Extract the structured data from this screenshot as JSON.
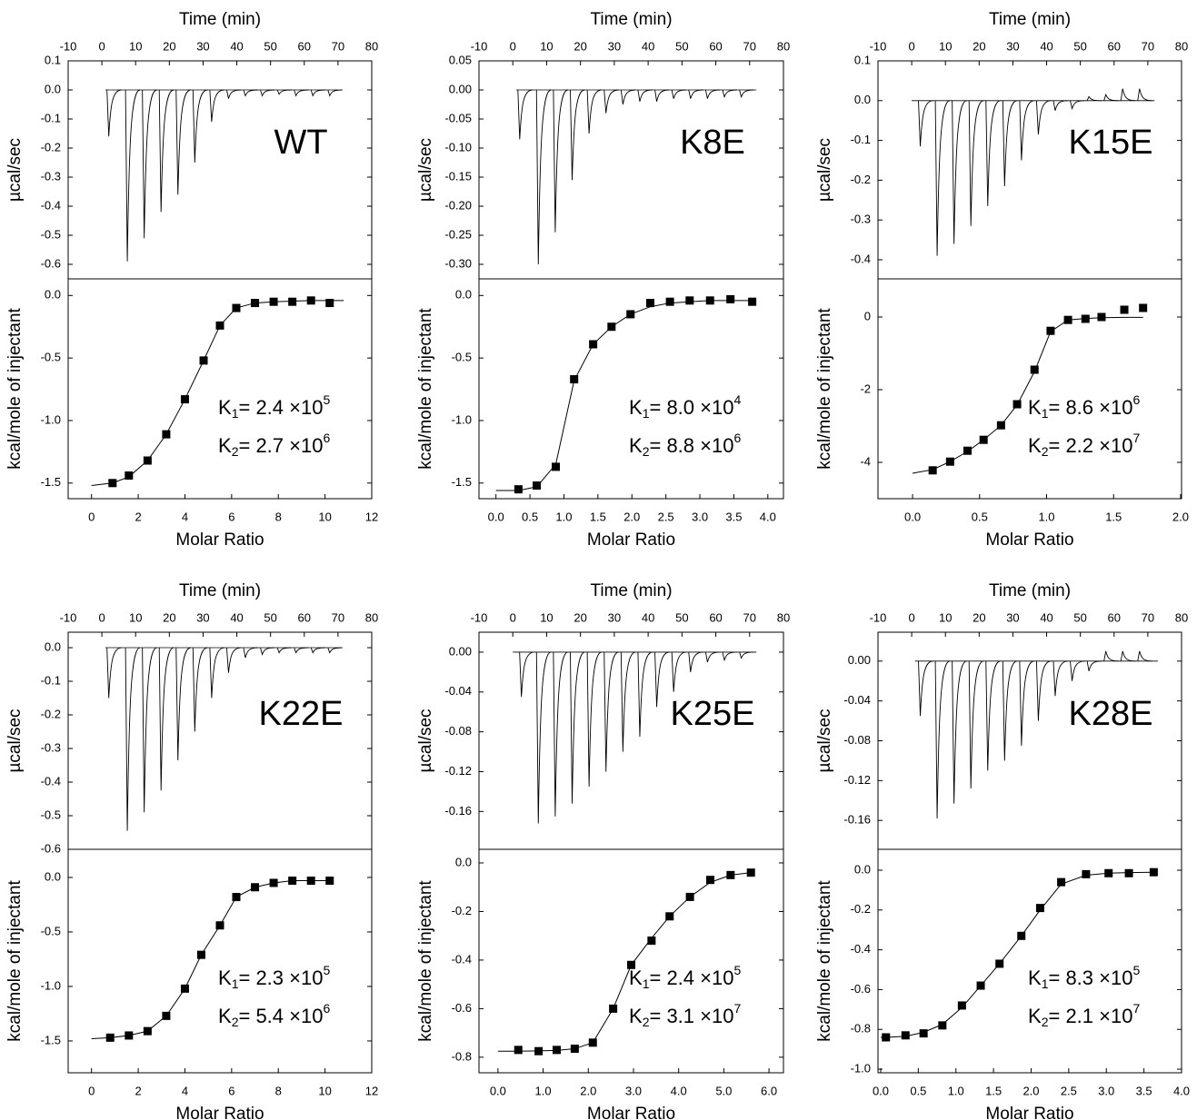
{
  "chart_data": [
    {
      "type": "thermogram",
      "label": "WT",
      "xlabel": "Time (min)",
      "ylabel": "µcal/sec",
      "x": [
        1.5,
        7,
        12,
        17,
        22,
        27,
        32,
        37,
        42,
        47,
        52,
        57,
        62,
        67
      ],
      "values": [
        -0.16,
        -0.59,
        -0.51,
        -0.42,
        -0.36,
        -0.25,
        -0.11,
        -0.03,
        -0.02,
        -0.02,
        -0.015,
        -0.02,
        -0.02,
        -0.02
      ],
      "baseline_x": [
        1,
        70
      ],
      "xlim": [
        -10,
        80
      ],
      "xticks": [
        -10,
        0,
        10,
        20,
        30,
        40,
        50,
        60,
        70,
        80
      ],
      "ylim": [
        -0.65,
        0.1
      ],
      "yticks": [
        0.1,
        {
          "value": 0,
          "label": "0.0"
        },
        -0.1,
        -0.2,
        -0.3,
        -0.4,
        -0.5,
        -0.6
      ]
    },
    {
      "type": "scatter",
      "xlabel": "Molar Ratio",
      "ylabel": "kcal/mole of injectant",
      "x": [
        0.9,
        1.6,
        2.4,
        3.2,
        4.0,
        4.8,
        5.5,
        6.2,
        7.0,
        7.8,
        8.6,
        9.4,
        10.2
      ],
      "values": [
        -1.5,
        -1.44,
        -1.32,
        -1.11,
        -0.83,
        -0.52,
        -0.24,
        -0.1,
        -0.06,
        -0.05,
        -0.05,
        -0.04,
        -0.06
      ],
      "fit": {
        "x": [
          0,
          0.9,
          1.6,
          2.4,
          3.2,
          4.0,
          4.8,
          5.5,
          6.2,
          7.0,
          7.8,
          8.6,
          9.4,
          10.2,
          10.8
        ],
        "values": [
          -1.52,
          -1.5,
          -1.45,
          -1.32,
          -1.11,
          -0.83,
          -0.52,
          -0.24,
          -0.1,
          -0.06,
          -0.05,
          -0.045,
          -0.04,
          -0.04,
          -0.04
        ]
      },
      "xlim": [
        -1,
        12
      ],
      "xticks": [
        0,
        2,
        4,
        6,
        8,
        10,
        12
      ],
      "ylim": [
        -1.625,
        0.133
      ],
      "yticks": [
        {
          "value": 0,
          "label": "0.0"
        },
        -0.5,
        {
          "value": -1,
          "label": "-1.0"
        },
        -1.5
      ],
      "annotations": [
        {
          "symbol": "K",
          "sub": "1",
          "text": "= 2.4 ×10",
          "sup": "5"
        },
        {
          "symbol": "K",
          "sub": "2",
          "text": "= 2.7 ×10",
          "sup": "6"
        }
      ]
    },
    {
      "type": "thermogram",
      "label": "K8E",
      "xlabel": "Time (min)",
      "ylabel": "µcal/sec",
      "x": [
        1.5,
        7,
        12,
        17,
        22,
        27,
        32,
        37,
        42,
        47,
        52,
        57,
        62,
        67
      ],
      "values": [
        -0.085,
        -0.3,
        -0.245,
        -0.155,
        -0.075,
        -0.04,
        -0.025,
        -0.02,
        -0.02,
        -0.015,
        -0.015,
        -0.015,
        -0.012,
        -0.012
      ],
      "baseline_x": [
        1,
        72
      ],
      "xlim": [
        -10,
        80
      ],
      "xticks": [
        -10,
        0,
        10,
        20,
        30,
        40,
        50,
        60,
        70,
        80
      ],
      "ylim": [
        -0.325,
        0.05
      ],
      "yticks": [
        0.05,
        {
          "value": 0,
          "label": "0.00"
        },
        -0.05,
        {
          "value": -0.1,
          "label": "-0.10"
        },
        -0.15,
        {
          "value": -0.2,
          "label": "-0.20"
        },
        -0.25,
        {
          "value": -0.3,
          "label": "-0.30"
        }
      ]
    },
    {
      "type": "scatter",
      "xlabel": "Molar Ratio",
      "ylabel": "kcal/mole of injectant",
      "x": [
        0.33,
        0.6,
        0.88,
        1.15,
        1.43,
        1.7,
        1.98,
        2.27,
        2.56,
        2.85,
        3.15,
        3.45,
        3.77
      ],
      "values": [
        -1.55,
        -1.52,
        -1.37,
        -0.67,
        -0.39,
        -0.25,
        -0.15,
        -0.06,
        -0.05,
        -0.04,
        -0.04,
        -0.03,
        -0.05
      ],
      "fit": {
        "x": [
          0,
          0.33,
          0.6,
          0.88,
          1.15,
          1.43,
          1.7,
          1.98,
          2.27,
          2.56,
          2.85,
          3.15,
          3.45,
          3.77
        ],
        "values": [
          -1.56,
          -1.56,
          -1.53,
          -1.35,
          -0.68,
          -0.39,
          -0.25,
          -0.15,
          -0.09,
          -0.06,
          -0.05,
          -0.04,
          -0.04,
          -0.04
        ]
      },
      "xlim": [
        -0.25,
        4.23
      ],
      "xticks": [
        {
          "value": 0,
          "label": "0.0"
        },
        0.5,
        {
          "value": 1,
          "label": "1.0"
        },
        1.5,
        {
          "value": 2,
          "label": "2.0"
        },
        2.5,
        {
          "value": 3,
          "label": "3.0"
        },
        3.5,
        {
          "value": 4,
          "label": "4.0"
        }
      ],
      "ylim": [
        -1.625,
        0.133
      ],
      "yticks": [
        {
          "value": 0,
          "label": "0.0"
        },
        -0.5,
        {
          "value": -1,
          "label": "-1.0"
        },
        -1.5
      ],
      "annotations": [
        {
          "symbol": "K",
          "sub": "1",
          "text": "= 8.0 ×10",
          "sup": "4"
        },
        {
          "symbol": "K",
          "sub": "2",
          "text": "= 8.8 ×10",
          "sup": "6"
        }
      ]
    },
    {
      "type": "thermogram",
      "label": "K15E",
      "xlabel": "Time (min)",
      "ylabel": "µcal/sec",
      "x": [
        2,
        7,
        12,
        17,
        22,
        27,
        32,
        37,
        42,
        47,
        52,
        57,
        62,
        67
      ],
      "values": [
        -0.115,
        -0.39,
        -0.36,
        -0.315,
        -0.265,
        -0.215,
        -0.15,
        -0.085,
        -0.025,
        -0.02,
        0.01,
        0.015,
        0.03,
        0.03
      ],
      "baseline_x": [
        0,
        72
      ],
      "xlim": [
        -10,
        80
      ],
      "xticks": [
        -10,
        0,
        10,
        20,
        30,
        40,
        50,
        60,
        70,
        80
      ],
      "ylim": [
        -0.448,
        0.1
      ],
      "yticks": [
        0.1,
        {
          "value": 0,
          "label": "0.0"
        },
        -0.1,
        -0.2,
        -0.3,
        -0.4
      ]
    },
    {
      "type": "scatter",
      "xlabel": "Molar Ratio",
      "ylabel": "kcal/mole of injectant",
      "x": [
        0.15,
        0.28,
        0.41,
        0.53,
        0.66,
        0.78,
        0.91,
        1.03,
        1.16,
        1.29,
        1.41,
        1.58,
        1.72
      ],
      "values": [
        -4.22,
        -3.98,
        -3.68,
        -3.38,
        -2.98,
        -2.4,
        -1.45,
        -0.38,
        -0.08,
        -0.05,
        0.0,
        0.2,
        0.25
      ],
      "fit": {
        "x": [
          0,
          0.15,
          0.28,
          0.41,
          0.53,
          0.66,
          0.78,
          0.91,
          1.03,
          1.16,
          1.29,
          1.41,
          1.58,
          1.72
        ],
        "values": [
          -4.3,
          -4.2,
          -3.98,
          -3.7,
          -3.38,
          -2.98,
          -2.42,
          -1.5,
          -0.4,
          -0.08,
          -0.04,
          -0.02,
          -0.01,
          -0.01
        ]
      },
      "xlim": [
        -0.258,
        2.007
      ],
      "xticks": [
        {
          "value": 0,
          "label": "0.0"
        },
        0.5,
        {
          "value": 1,
          "label": "1.0"
        },
        1.5,
        {
          "value": 2,
          "label": "2.0"
        }
      ],
      "ylim": [
        -5,
        1.05
      ],
      "yticks": [
        0,
        -2,
        -4
      ],
      "annotations": [
        {
          "symbol": "K",
          "sub": "1",
          "text": "= 8.6 ×10",
          "sup": "6"
        },
        {
          "symbol": "K",
          "sub": "2",
          "text": "= 2.2 ×10",
          "sup": "7"
        }
      ]
    },
    {
      "type": "thermogram",
      "label": "K22E",
      "xlabel": "Time (min)",
      "ylabel": "µcal/sec",
      "x": [
        1.5,
        7,
        12,
        17,
        22,
        27,
        32,
        37,
        42,
        47,
        52,
        57,
        62,
        67
      ],
      "values": [
        -0.15,
        -0.545,
        -0.49,
        -0.425,
        -0.335,
        -0.25,
        -0.15,
        -0.075,
        -0.03,
        -0.02,
        -0.015,
        -0.015,
        -0.015,
        -0.015
      ],
      "baseline_x": [
        1,
        71
      ],
      "xlim": [
        -10,
        80
      ],
      "xticks": [
        -10,
        0,
        10,
        20,
        30,
        40,
        50,
        60,
        70,
        80
      ],
      "ylim": [
        -0.6,
        0.046
      ],
      "yticks": [
        {
          "value": 0,
          "label": "0.0"
        },
        -0.1,
        -0.2,
        -0.3,
        -0.4,
        -0.5,
        -0.6
      ]
    },
    {
      "type": "scatter",
      "xlabel": "Molar Ratio",
      "ylabel": "kcal/mole of injectant",
      "x": [
        0.8,
        1.6,
        2.4,
        3.2,
        4.0,
        4.7,
        5.5,
        6.2,
        7.0,
        7.8,
        8.6,
        9.4,
        10.2
      ],
      "values": [
        -1.47,
        -1.45,
        -1.41,
        -1.27,
        -1.02,
        -0.71,
        -0.44,
        -0.18,
        -0.09,
        -0.05,
        -0.03,
        -0.03,
        -0.03
      ],
      "fit": {
        "x": [
          0,
          0.8,
          1.6,
          2.4,
          3.2,
          4.0,
          4.7,
          5.5,
          6.2,
          7.0,
          7.8,
          8.6,
          9.4,
          10.2
        ],
        "values": [
          -1.48,
          -1.47,
          -1.45,
          -1.41,
          -1.27,
          -1.02,
          -0.71,
          -0.44,
          -0.18,
          -0.09,
          -0.05,
          -0.03,
          -0.03,
          -0.03
        ]
      },
      "xlim": [
        -1,
        12
      ],
      "xticks": [
        0,
        2,
        4,
        6,
        8,
        10,
        12
      ],
      "ylim": [
        -1.792,
        0.258
      ],
      "yticks": [
        {
          "value": 0,
          "label": "0.0"
        },
        -0.5,
        {
          "value": -1,
          "label": "-1.0"
        },
        -1.5
      ],
      "annotations": [
        {
          "symbol": "K",
          "sub": "1",
          "text": "= 2.3 ×10",
          "sup": "5"
        },
        {
          "symbol": "K",
          "sub": "2",
          "text": "= 5.4 ×10",
          "sup": "6"
        }
      ]
    },
    {
      "type": "thermogram",
      "label": "K25E",
      "xlabel": "Time (min)",
      "ylabel": "µcal/sec",
      "x": [
        2,
        7,
        12,
        17,
        22,
        27,
        32,
        37,
        42,
        47,
        52,
        57,
        62,
        67
      ],
      "values": [
        -0.045,
        -0.172,
        -0.165,
        -0.152,
        -0.135,
        -0.12,
        -0.1,
        -0.085,
        -0.055,
        -0.04,
        -0.02,
        -0.01,
        -0.008,
        -0.006
      ],
      "baseline_x": [
        0,
        72
      ],
      "xlim": [
        -10,
        80
      ],
      "xticks": [
        -10,
        0,
        10,
        20,
        30,
        40,
        50,
        60,
        70,
        80
      ],
      "ylim": [
        -0.198,
        0.02
      ],
      "yticks": [
        {
          "value": 0,
          "label": "0.00"
        },
        -0.04,
        -0.08,
        -0.12,
        -0.16
      ]
    },
    {
      "type": "scatter",
      "xlabel": "Molar Ratio",
      "ylabel": "kcal/mole of injectant",
      "x": [
        0.45,
        0.9,
        1.3,
        1.7,
        2.1,
        2.55,
        2.95,
        3.4,
        3.8,
        4.25,
        4.7,
        5.15,
        5.6
      ],
      "values": [
        -0.77,
        -0.775,
        -0.77,
        -0.765,
        -0.74,
        -0.6,
        -0.42,
        -0.32,
        -0.22,
        -0.14,
        -0.07,
        -0.05,
        -0.04
      ],
      "fit": {
        "x": [
          0,
          0.45,
          0.9,
          1.3,
          1.7,
          2.1,
          2.55,
          2.95,
          3.4,
          3.8,
          4.25,
          4.7,
          5.15,
          5.6
        ],
        "values": [
          -0.775,
          -0.775,
          -0.774,
          -0.772,
          -0.765,
          -0.74,
          -0.6,
          -0.42,
          -0.31,
          -0.22,
          -0.14,
          -0.08,
          -0.05,
          -0.04
        ]
      },
      "xlim": [
        -0.42,
        6.32
      ],
      "xticks": [
        {
          "value": 0,
          "label": "0.0"
        },
        {
          "value": 1,
          "label": "1.0"
        },
        {
          "value": 2,
          "label": "2.0"
        },
        {
          "value": 3,
          "label": "3.0"
        },
        {
          "value": 4,
          "label": "4.0"
        },
        {
          "value": 5,
          "label": "5.0"
        },
        {
          "value": 6,
          "label": "6.0"
        }
      ],
      "ylim": [
        -0.864,
        0.056
      ],
      "yticks": [
        {
          "value": 0,
          "label": "0.0"
        },
        -0.2,
        -0.4,
        -0.6,
        -0.8
      ],
      "annotations": [
        {
          "symbol": "K",
          "sub": "1",
          "text": "= 2.4 ×10",
          "sup": "5"
        },
        {
          "symbol": "K",
          "sub": "2",
          "text": "= 3.1 ×10",
          "sup": "7"
        }
      ]
    },
    {
      "type": "thermogram",
      "label": "K28E",
      "xlabel": "Time (min)",
      "ylabel": "µcal/sec",
      "x": [
        2,
        7,
        12,
        17,
        22,
        27,
        32,
        37,
        42,
        47,
        52,
        57,
        62,
        67
      ],
      "values": [
        -0.055,
        -0.158,
        -0.143,
        -0.128,
        -0.11,
        -0.1,
        -0.085,
        -0.06,
        -0.035,
        -0.02,
        -0.01,
        0.01,
        0.01,
        0.01
      ],
      "baseline_x": [
        1,
        73
      ],
      "xlim": [
        -10,
        80
      ],
      "xticks": [
        -10,
        0,
        10,
        20,
        30,
        40,
        50,
        60,
        70,
        80
      ],
      "ylim": [
        -0.189,
        0.029
      ],
      "yticks": [
        {
          "value": 0,
          "label": "0.00"
        },
        -0.04,
        -0.08,
        -0.12,
        -0.16
      ]
    },
    {
      "type": "scatter",
      "xlabel": "Molar Ratio",
      "ylabel": "kcal/mole of injectant",
      "x": [
        0.07,
        0.33,
        0.57,
        0.82,
        1.08,
        1.33,
        1.58,
        1.87,
        2.12,
        2.4,
        2.73,
        3.03,
        3.3,
        3.63
      ],
      "values": [
        -0.84,
        -0.83,
        -0.82,
        -0.78,
        -0.68,
        -0.58,
        -0.47,
        -0.33,
        -0.19,
        -0.06,
        -0.02,
        -0.015,
        -0.015,
        -0.01
      ],
      "fit": {
        "x": [
          0,
          0.07,
          0.33,
          0.57,
          0.82,
          1.08,
          1.33,
          1.58,
          1.87,
          2.12,
          2.4,
          2.73,
          3.03,
          3.3,
          3.63
        ],
        "values": [
          -0.84,
          -0.84,
          -0.835,
          -0.815,
          -0.775,
          -0.69,
          -0.58,
          -0.47,
          -0.33,
          -0.2,
          -0.07,
          -0.025,
          -0.015,
          -0.012,
          -0.01
        ]
      },
      "xlim": [
        -0.036,
        4.0
      ],
      "xticks": [
        {
          "value": 0,
          "label": "0.0"
        },
        0.5,
        {
          "value": 1,
          "label": "1.0"
        },
        1.5,
        {
          "value": 2,
          "label": "2.0"
        },
        2.5,
        {
          "value": 3,
          "label": "3.0"
        },
        3.5,
        {
          "value": 4,
          "label": "4.0"
        }
      ],
      "ylim": [
        -1.018,
        0.105
      ],
      "yticks": [
        {
          "value": 0,
          "label": "0.0"
        },
        -0.2,
        -0.4,
        -0.6,
        -0.8,
        {
          "value": -1,
          "label": "-1.0"
        }
      ],
      "annotations": [
        {
          "symbol": "K",
          "sub": "1",
          "text": "= 8.3 ×10",
          "sup": "5"
        },
        {
          "symbol": "K",
          "sub": "2",
          "text": "= 2.1 ×10",
          "sup": "7"
        }
      ]
    }
  ]
}
